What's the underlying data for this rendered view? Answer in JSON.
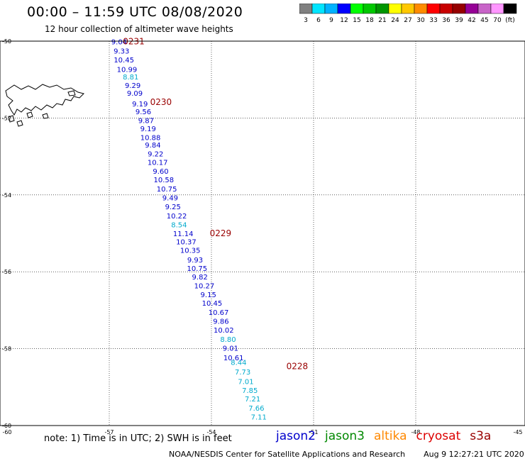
{
  "header": {
    "title": "00:00 – 11:59 UTC 08/08/2020",
    "subtitle": "12 hour collection of altimeter wave heights"
  },
  "colorbar": {
    "colors": [
      "#808080",
      "#00e5ff",
      "#00b2ff",
      "#0000ff",
      "#00ff00",
      "#00c800",
      "#009600",
      "#ffff00",
      "#ffc800",
      "#ff8c00",
      "#ff0000",
      "#c80000",
      "#960000",
      "#960096",
      "#c864c8",
      "#ff96ff",
      "#000000"
    ],
    "labels": [
      "3",
      "6",
      "9",
      "12",
      "15",
      "18",
      "21",
      "24",
      "27",
      "30",
      "33",
      "36",
      "39",
      "42",
      "45",
      "70",
      "(ft)"
    ]
  },
  "notes": "note:  1) Time is in UTC;  2) SWH is in feet",
  "satellites": [
    {
      "name": "jason2",
      "color": "#0000cc"
    },
    {
      "name": "jason3",
      "color": "#008800"
    },
    {
      "name": "altika",
      "color": "#ff8800"
    },
    {
      "name": "cryosat",
      "color": "#dd0000"
    },
    {
      "name": "s3a",
      "color": "#990000"
    }
  ],
  "footer": {
    "source": "NOAA/NESDIS Center for Satellite Applications and Research",
    "timestamp": "Aug  9 12:27:21 UTC 2020"
  },
  "chart_data": {
    "type": "scatter",
    "x_range": [
      -60,
      -45
    ],
    "y_range": [
      -60,
      -50
    ],
    "x_ticks": [
      "-60",
      "-57",
      "-54",
      "-51",
      "-48",
      "-45"
    ],
    "y_ticks": [
      "-50",
      "-52",
      "-54",
      "-56",
      "-58",
      "-60"
    ],
    "grid": true,
    "time_labels": [
      {
        "text": "0231",
        "lon": -56.6,
        "lat": -50.08
      },
      {
        "text": "0230",
        "lon": -55.8,
        "lat": -51.66
      },
      {
        "text": "0229",
        "lon": -54.05,
        "lat": -55.07
      },
      {
        "text": "0228",
        "lon": -51.8,
        "lat": -58.53
      }
    ],
    "points": [
      {
        "lon": -56.71,
        "lat": -50.08,
        "swh": 9.04,
        "color": "#0000cc"
      },
      {
        "lon": -56.64,
        "lat": -50.32,
        "swh": 9.33,
        "color": "#0000cc"
      },
      {
        "lon": -56.57,
        "lat": -50.55,
        "swh": 10.45,
        "color": "#0000cc"
      },
      {
        "lon": -56.48,
        "lat": -50.8,
        "swh": 10.99,
        "color": "#0000cc"
      },
      {
        "lon": -56.37,
        "lat": -51.0,
        "swh": 8.81,
        "color": "#00aacc"
      },
      {
        "lon": -56.31,
        "lat": -51.22,
        "swh": 9.29,
        "color": "#0000cc"
      },
      {
        "lon": -56.25,
        "lat": -51.42,
        "swh": 9.09,
        "color": "#0000cc"
      },
      {
        "lon": -56.1,
        "lat": -51.7,
        "swh": 9.19,
        "color": "#0000cc"
      },
      {
        "lon": -56.0,
        "lat": -51.9,
        "swh": 9.56,
        "color": "#0000cc"
      },
      {
        "lon": -55.92,
        "lat": -52.13,
        "swh": 9.87,
        "color": "#0000cc"
      },
      {
        "lon": -55.86,
        "lat": -52.34,
        "swh": 9.19,
        "color": "#0000cc"
      },
      {
        "lon": -55.79,
        "lat": -52.57,
        "swh": 10.88,
        "color": "#0000cc"
      },
      {
        "lon": -55.72,
        "lat": -52.77,
        "swh": 9.84,
        "color": "#0000cc"
      },
      {
        "lon": -55.64,
        "lat": -53.0,
        "swh": 9.22,
        "color": "#0000cc"
      },
      {
        "lon": -55.58,
        "lat": -53.22,
        "swh": 10.17,
        "color": "#0000cc"
      },
      {
        "lon": -55.49,
        "lat": -53.45,
        "swh": 9.6,
        "color": "#0000cc"
      },
      {
        "lon": -55.4,
        "lat": -53.67,
        "swh": 10.58,
        "color": "#0000cc"
      },
      {
        "lon": -55.31,
        "lat": -53.91,
        "swh": 10.75,
        "color": "#0000cc"
      },
      {
        "lon": -55.21,
        "lat": -54.14,
        "swh": 9.49,
        "color": "#0000cc"
      },
      {
        "lon": -55.13,
        "lat": -54.37,
        "swh": 9.25,
        "color": "#0000cc"
      },
      {
        "lon": -55.02,
        "lat": -54.61,
        "swh": 10.22,
        "color": "#0000cc"
      },
      {
        "lon": -54.95,
        "lat": -54.84,
        "swh": 8.54,
        "color": "#00aacc"
      },
      {
        "lon": -54.83,
        "lat": -55.07,
        "swh": 11.14,
        "color": "#0000cc"
      },
      {
        "lon": -54.74,
        "lat": -55.29,
        "swh": 10.37,
        "color": "#0000cc"
      },
      {
        "lon": -54.62,
        "lat": -55.51,
        "swh": 10.35,
        "color": "#0000cc"
      },
      {
        "lon": -54.48,
        "lat": -55.76,
        "swh": 9.93,
        "color": "#0000cc"
      },
      {
        "lon": -54.42,
        "lat": -55.98,
        "swh": 10.75,
        "color": "#0000cc"
      },
      {
        "lon": -54.34,
        "lat": -56.2,
        "swh": 9.82,
        "color": "#0000cc"
      },
      {
        "lon": -54.21,
        "lat": -56.43,
        "swh": 10.27,
        "color": "#0000cc"
      },
      {
        "lon": -54.09,
        "lat": -56.66,
        "swh": 9.15,
        "color": "#0000cc"
      },
      {
        "lon": -53.98,
        "lat": -56.88,
        "swh": 10.45,
        "color": "#0000cc"
      },
      {
        "lon": -53.79,
        "lat": -57.12,
        "swh": 10.67,
        "color": "#0000cc"
      },
      {
        "lon": -53.72,
        "lat": -57.35,
        "swh": 9.86,
        "color": "#0000cc"
      },
      {
        "lon": -53.64,
        "lat": -57.58,
        "swh": 10.02,
        "color": "#0000cc"
      },
      {
        "lon": -53.51,
        "lat": -57.82,
        "swh": 8.8,
        "color": "#00aacc"
      },
      {
        "lon": -53.44,
        "lat": -58.05,
        "swh": 9.01,
        "color": "#0000cc"
      },
      {
        "lon": -53.35,
        "lat": -58.3,
        "swh": 10.61,
        "color": "#0000cc"
      },
      {
        "lon": -53.2,
        "lat": -58.42,
        "swh": 8.44,
        "color": "#00aacc"
      },
      {
        "lon": -53.08,
        "lat": -58.67,
        "swh": 7.73,
        "color": "#00aacc"
      },
      {
        "lon": -52.99,
        "lat": -58.92,
        "swh": 7.01,
        "color": "#00aacc"
      },
      {
        "lon": -52.87,
        "lat": -59.15,
        "swh": 7.85,
        "color": "#00aacc"
      },
      {
        "lon": -52.79,
        "lat": -59.37,
        "swh": 7.21,
        "color": "#00aacc"
      },
      {
        "lon": -52.68,
        "lat": -59.61,
        "swh": 7.66,
        "color": "#00aacc"
      },
      {
        "lon": -52.61,
        "lat": -59.84,
        "swh": 7.11,
        "color": "#00aacc"
      }
    ]
  }
}
